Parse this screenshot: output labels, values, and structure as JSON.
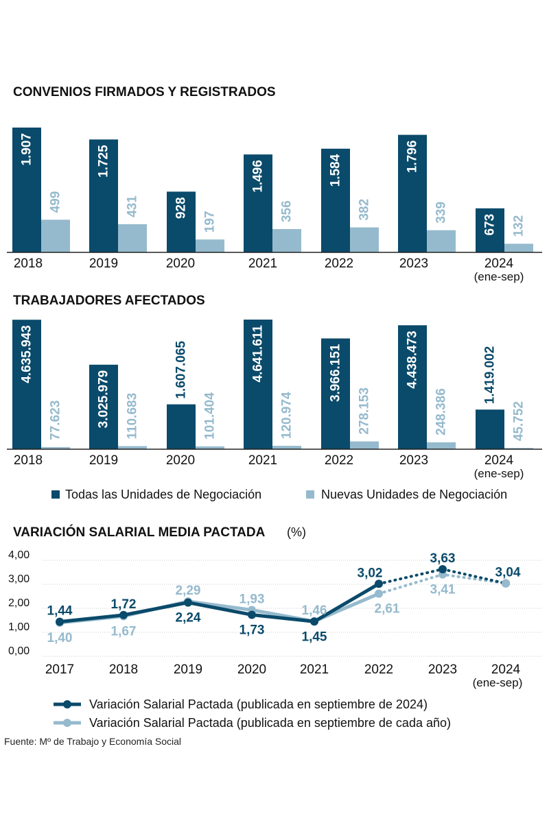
{
  "colors": {
    "dark": "#0a4a6a",
    "light": "#95bacd",
    "axis": "#222222",
    "grid": "#c8c8c8"
  },
  "legend_bars": {
    "dark_label": "Todas las Unidades de Negociación",
    "light_label": "Nuevas Unidades de Negociación"
  },
  "legend_lines": {
    "dark_label": "Variación Salarial Pactada (publicada en septiembre de 2024)",
    "light_label": "Variación Salarial Pactada (publicada en septiembre de cada año)"
  },
  "line_title_unit": "(%)",
  "source": "Fuente: Mº de Trabajo y Economía Social",
  "chart_data": [
    {
      "type": "bar",
      "title": "CONVENIOS FIRMADOS Y REGISTRADOS",
      "categories": [
        "2018",
        "2019",
        "2020",
        "2021",
        "2022",
        "2023",
        "2024"
      ],
      "category_notes": [
        "",
        "",
        "",
        "",
        "",
        "",
        "(ene-sep)"
      ],
      "series": [
        {
          "name": "Todas las Unidades de Negociación",
          "values": [
            1907,
            1725,
            928,
            1496,
            1584,
            1796,
            673
          ],
          "labels": [
            "1.907",
            "1.725",
            "928",
            "1.496",
            "1.584",
            "1.796",
            "673"
          ]
        },
        {
          "name": "Nuevas Unidades de Negociación",
          "values": [
            499,
            431,
            197,
            356,
            382,
            339,
            132
          ],
          "labels": [
            "499",
            "431",
            "197",
            "356",
            "382",
            "339",
            "132"
          ]
        }
      ]
    },
    {
      "type": "bar",
      "title": "TRABAJADORES AFECTADOS",
      "categories": [
        "2018",
        "2019",
        "2020",
        "2021",
        "2022",
        "2023",
        "2024"
      ],
      "category_notes": [
        "",
        "",
        "",
        "",
        "",
        "",
        "(ene-sep)"
      ],
      "series": [
        {
          "name": "Todas las Unidades de Negociación",
          "values": [
            4635943,
            3025979,
            1607065,
            4641611,
            3966151,
            4438473,
            1419002
          ],
          "labels": [
            "4.635.943",
            "3.025.979",
            "1.607.065",
            "4.641.611",
            "3.966.151",
            "4.438.473",
            "1.419.002"
          ]
        },
        {
          "name": "Nuevas Unidades de Negociación",
          "values": [
            77623,
            110683,
            101404,
            120974,
            278153,
            248386,
            45752
          ],
          "labels": [
            "77.623",
            "110.683",
            "101.404",
            "120.974",
            "278.153",
            "248.386",
            "45.752"
          ]
        }
      ]
    },
    {
      "type": "line",
      "title": "VARIACIÓN SALARIAL MEDIA PACTADA",
      "x": [
        "2017",
        "2018",
        "2019",
        "2020",
        "2021",
        "2022",
        "2023",
        "2024"
      ],
      "x_notes": [
        "",
        "",
        "",
        "",
        "",
        "",
        "",
        "(ene-sep)"
      ],
      "ylim": [
        0,
        4
      ],
      "y_ticks": [
        "0,00",
        "1,00",
        "2,00",
        "3,00",
        "4,00"
      ],
      "series": [
        {
          "name": "Variación Salarial Pactada (publicada en septiembre de 2024)",
          "values": [
            1.44,
            1.72,
            2.24,
            1.73,
            1.45,
            3.02,
            3.63,
            3.04
          ],
          "labels": [
            "1,44",
            "1,72",
            "2,24",
            "1,73",
            "1,45",
            "3,02",
            "3,63",
            "3,04"
          ],
          "dashed_from_index": 5
        },
        {
          "name": "Variación Salarial Pactada (publicada en septiembre de cada año)",
          "values": [
            1.4,
            1.67,
            2.29,
            1.93,
            1.46,
            2.61,
            3.41,
            3.04
          ],
          "labels": [
            "1,40",
            "1,67",
            "2,29",
            "1,93",
            "1,46",
            "2,61",
            "3,41",
            ""
          ],
          "dashed_from_index": 5
        }
      ]
    }
  ]
}
